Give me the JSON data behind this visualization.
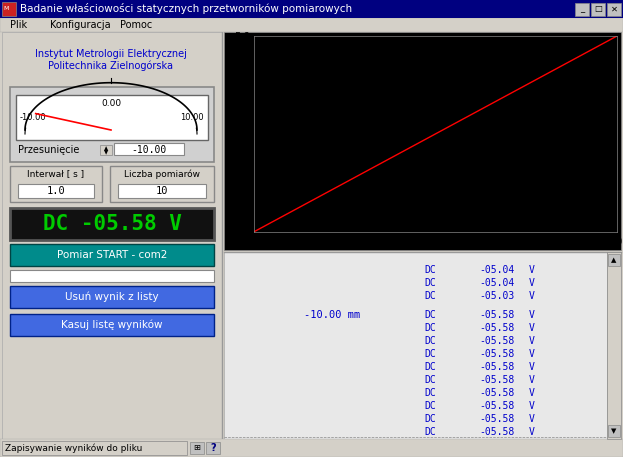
{
  "title_bar": "Badanie właściowości statycznych przetworników pomiarowych",
  "menu_items": [
    "Plik",
    "Konfiguracja",
    "Pomoc"
  ],
  "institute_line1": "Instytut Metrologii Elektrycznej",
  "institute_line2": "Politechnika Zielnogórska",
  "gauge_center_label": "0.00",
  "gauge_left_label": "-10.00",
  "gauge_right_label": "10.00",
  "gauge_label": "Przesunięcie",
  "gauge_value": "-10.00",
  "interval_label": "Interwał [ s ]",
  "interval_value": "1.0",
  "count_label": "Liczba pomiarów",
  "count_value": "10",
  "display_text": "DC -05.58 V",
  "button1_text": "Pomiar START - com2",
  "button2_text": "Usuń wynik z listy",
  "button3_text": "Kasuj listę wyników",
  "status_text": "Zapisywanie wyników do pliku",
  "plot_xlim": [
    -10,
    10
  ],
  "plot_ylim": [
    -5.6,
    5.6
  ],
  "plot_xticks": [
    -10,
    -8,
    -6,
    -4,
    -2,
    0,
    2,
    4,
    6,
    8,
    10
  ],
  "plot_line_color": "#ff0000",
  "plot_bg": "#000000",
  "bg_color": "#c0c0c0",
  "panel_bg": "#d4d0c8",
  "titlebar_color": "#000080",
  "titlebar_text_color": "#ffffff",
  "display_bg": "#111111",
  "display_text_color": "#00cc00",
  "button_teal_color": "#008b8b",
  "button_blue_color": "#4169e1",
  "institute_color": "#0000cc",
  "data_text_color": "#0000cc",
  "list_pos_text": "-10.00 mm",
  "data_lines_1": [
    "DC -05.04   V",
    "DC -05.04   V",
    "DC -05.03   V"
  ],
  "data_lines_2": [
    "DC -05.58   V",
    "DC -05.58   V",
    "DC -05.58   V",
    "DC -05.58   V",
    "DC -05.58   V",
    "DC -05.58   V",
    "DC -05.58   V",
    "DC -05.58   V",
    "DC -05.58   V",
    "DC -05.58   V"
  ]
}
